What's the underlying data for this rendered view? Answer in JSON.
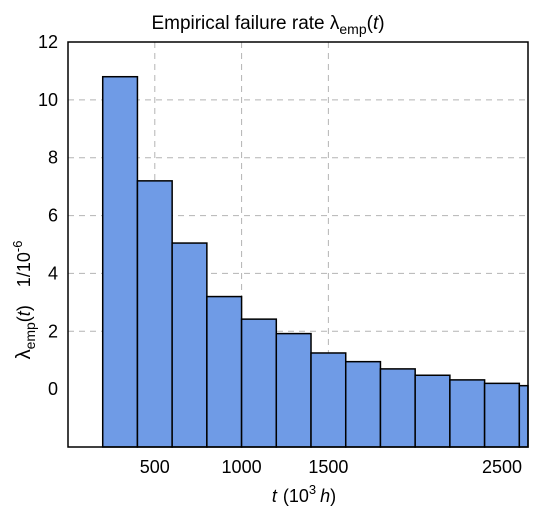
{
  "chart_data": {
    "type": "bar",
    "title": {
      "prefix": "Empirical failure rate ",
      "symbol": "λ",
      "subscript": "emp",
      "suffix_open": "(",
      "variable": "t",
      "suffix_close": ")"
    },
    "ylabel": {
      "symbol": "λ",
      "subscript": "emp",
      "open": "(",
      "variable": "t",
      "close": ")",
      "unit": "1/10",
      "unit_exponent": "-6"
    },
    "xlabel": {
      "variable": "t",
      "unit_open": "(10",
      "unit_exponent": "3",
      "unit_variable": "h",
      "unit_close": ")"
    },
    "xlim": [
      0,
      2650
    ],
    "ylim": [
      -2,
      12
    ],
    "x_ticks": [
      500,
      1000,
      1500,
      2500
    ],
    "x_tick_labels": [
      "500",
      "1000",
      "1500",
      "2500"
    ],
    "y_ticks": [
      0,
      2,
      4,
      6,
      8,
      10,
      12
    ],
    "y_tick_labels": [
      "0",
      "2",
      "4",
      "6",
      "8",
      "10",
      "12"
    ],
    "x_grid": [
      500,
      1000,
      1500
    ],
    "y_grid": [
      2,
      4,
      6,
      8,
      10
    ],
    "grid": true,
    "bar_color": "#6f9be6",
    "bin_edges": [
      200,
      400,
      600,
      800,
      1000,
      1200,
      1400,
      1600,
      1800,
      2000,
      2200,
      2400,
      2600,
      2800,
      3000
    ],
    "values": [
      10.8,
      7.2,
      5.05,
      3.2,
      2.42,
      1.92,
      1.25,
      0.95,
      0.7,
      0.48,
      0.32,
      0.2,
      0.12,
      0.0
    ],
    "baseline": -2
  }
}
